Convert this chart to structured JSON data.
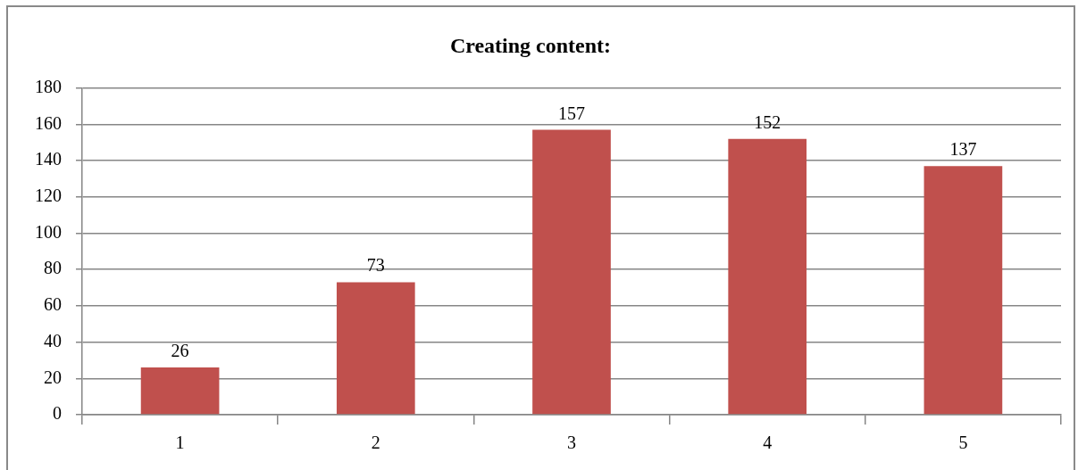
{
  "chart_data": {
    "type": "bar",
    "title": "Creating content:",
    "categories": [
      "1",
      "2",
      "3",
      "4",
      "5"
    ],
    "values": [
      26,
      73,
      157,
      152,
      137
    ],
    "color": "#c0504d",
    "ylim": [
      0,
      180
    ],
    "yticks": [
      0,
      20,
      40,
      60,
      80,
      100,
      120,
      140,
      160,
      180
    ],
    "grid": "y",
    "data_labels": true
  }
}
